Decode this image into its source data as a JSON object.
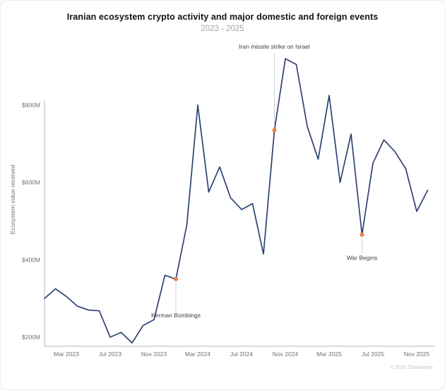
{
  "footer": "© 2026 Chainalysis",
  "chart_data": {
    "type": "line",
    "title": "Iranian ecosystem crypto activity and major domestic and foreign events",
    "subtitle": "2023 - 2025",
    "ylabel": "Ecosystem value received",
    "unit": "USD (millions)",
    "line_color": "#2e4272",
    "marker_color": "#f47c3c",
    "grid": false,
    "ylim": [
      170,
      940
    ],
    "x": [
      "Jan 2023",
      "Feb 2023",
      "Mar 2023",
      "Apr 2023",
      "May 2023",
      "Jun 2023",
      "Jul 2023",
      "Aug 2023",
      "Sep 2023",
      "Oct 2023",
      "Nov 2023",
      "Dec 2023",
      "Jan 2024",
      "Feb 2024",
      "Mar 2024",
      "Apr 2024",
      "May 2024",
      "Jun 2024",
      "Jul 2024",
      "Aug 2024",
      "Sep 2024",
      "Oct 2024",
      "Nov 2024",
      "Dec 2024",
      "Jan 2025",
      "Feb 2025",
      "Mar 2025",
      "Apr 2025",
      "May 2025",
      "Jun 2025",
      "Jul 2025",
      "Aug 2025",
      "Sep 2025",
      "Oct 2025",
      "Nov 2025",
      "Dec 2025"
    ],
    "values": [
      300,
      325,
      305,
      280,
      270,
      268,
      200,
      212,
      185,
      230,
      245,
      360,
      350,
      490,
      800,
      575,
      640,
      560,
      530,
      545,
      415,
      735,
      920,
      905,
      745,
      660,
      825,
      600,
      725,
      465,
      650,
      710,
      680,
      635,
      525,
      580
    ],
    "yticks": [
      {
        "value": 200,
        "label": "$200M"
      },
      {
        "value": 400,
        "label": "$400M"
      },
      {
        "value": 600,
        "label": "$600M"
      },
      {
        "value": 800,
        "label": "$800M"
      }
    ],
    "xtick_labels": [
      "Mar 2023",
      "Jul 2023",
      "Nov 2023",
      "Mar 2024",
      "Jul 2024",
      "Nov 2024",
      "Mar 2025",
      "Jul 2025",
      "Nov 2025"
    ],
    "xtick_indices": [
      2,
      6,
      10,
      14,
      18,
      22,
      26,
      30,
      34
    ],
    "annotations": [
      {
        "label": "Kerman Bombings",
        "month": "Jan 2024",
        "index": 12,
        "value": 350,
        "placement": "below",
        "label_dy": 54
      },
      {
        "label": "Iran missile strike on Israel",
        "month": "Oct 2024",
        "index": 21,
        "value": 735,
        "placement": "top"
      },
      {
        "label": "War Begins",
        "month": "Jun 2025",
        "index": 29,
        "value": 465,
        "placement": "below",
        "label_dy": 36
      }
    ]
  }
}
